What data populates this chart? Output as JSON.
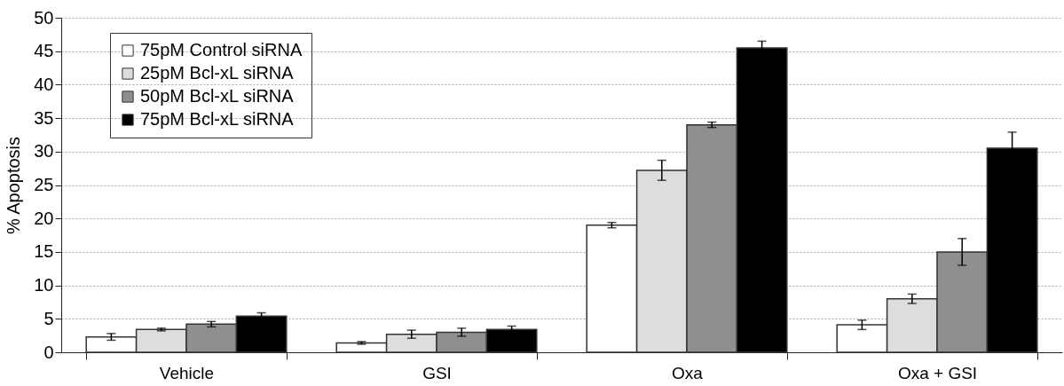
{
  "chart_data": {
    "type": "bar",
    "ylabel": "% Apoptosis",
    "categories": [
      "Vehicle",
      "GSI",
      "Oxa",
      "Oxa + GSI"
    ],
    "series": [
      {
        "name": "75pM Control siRNA",
        "color": "#ffffff",
        "values": [
          2.3,
          1.4,
          19.0,
          4.1
        ],
        "errors": [
          0.5,
          0.2,
          0.4,
          0.7
        ]
      },
      {
        "name": "25pM Bcl-xL siRNA",
        "color": "#dddddd",
        "values": [
          3.4,
          2.7,
          27.2,
          8.0
        ],
        "errors": [
          0.2,
          0.6,
          1.5,
          0.7
        ]
      },
      {
        "name": "50pM Bcl-xL siRNA",
        "color": "#8f8f8f",
        "values": [
          4.2,
          3.0,
          34.0,
          15.0
        ],
        "errors": [
          0.4,
          0.6,
          0.4,
          2.0
        ]
      },
      {
        "name": "75pM Bcl-xL siRNA",
        "color": "#000000",
        "values": [
          5.4,
          3.4,
          45.5,
          30.5
        ],
        "errors": [
          0.5,
          0.5,
          1.0,
          2.4
        ]
      }
    ],
    "ylim": [
      0,
      50
    ],
    "yticks": [
      0,
      5,
      10,
      15,
      20,
      25,
      30,
      35,
      40,
      45,
      50
    ],
    "grid": "y",
    "legend": "top left"
  }
}
